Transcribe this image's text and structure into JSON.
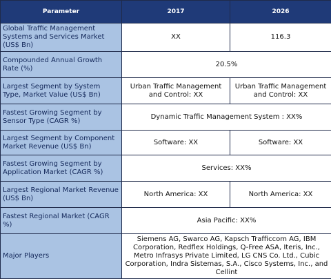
{
  "headers": {
    "parameter": "Parameter",
    "year_2017": "2017",
    "year_2026": "2026"
  },
  "rows": [
    {
      "label": "Global Traffic Management Systems and Services Market (US$ Bn)",
      "v2017": "XX",
      "v2026": "116.3"
    },
    {
      "label": "Compounded Annual Growth Rate (%)",
      "span": "20.5%"
    },
    {
      "label": "Largest Segment by System Type, Market Value (US$ Bn)",
      "v2017": "Urban Traffic Management and Control:  XX",
      "v2026": "Urban Traffic Management and Control:  XX"
    },
    {
      "label": "Fastest Growing Segment by Sensor Type (CAGR %)",
      "span": "Dynamic Traffic Management System : XX%"
    },
    {
      "label": "Largest Segment by Component Market Revenue (US$ Bn)",
      "v2017": "Software:  XX",
      "v2026": "Software:  XX"
    },
    {
      "label": "Fastest Growing Segment by Application Market (CAGR %)",
      "span": "Services: XX%"
    },
    {
      "label": "Largest Regional Market Revenue (US$ Bn)",
      "v2017": "North America: XX",
      "v2026": "North America: XX"
    },
    {
      "label": "Fastest Regional Market (CAGR %)",
      "span": "Asia Pacific: XX%"
    },
    {
      "label": "Major Players",
      "span": "Siemens AG, Swarco AG, Kapsch Trafficcom AG, IBM Corporation, Redflex Holdings, Q-Free ASA, Iteris, Inc., Metro Infrasys Private Limited, LG CNS Co. Ltd., Cubic Corporation, Indra Sistemas, S.A., Cisco Systems, Inc., and Cellint"
    }
  ],
  "colors": {
    "header_bg": "#1f3a78",
    "param_bg": "#aac3e3",
    "param_text": "#14285a",
    "border": "#1f2a4a"
  }
}
